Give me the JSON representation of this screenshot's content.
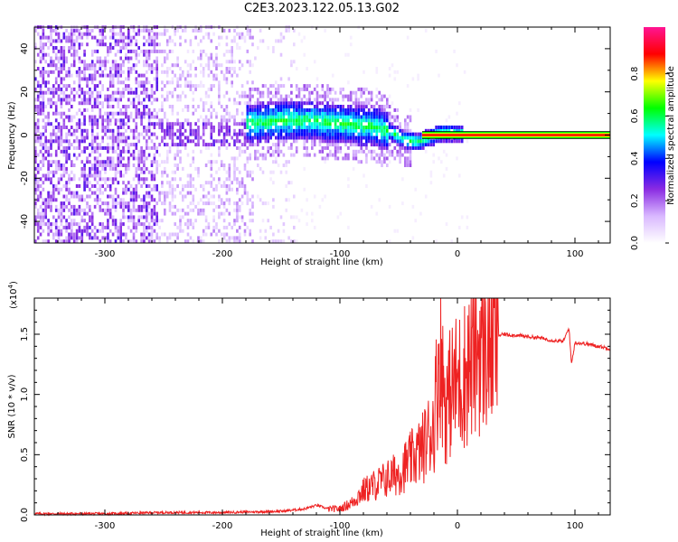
{
  "title": "C2E3.2023.122.05.13.G02",
  "chart_data": [
    {
      "type": "heatmap",
      "id": "spectrogram",
      "xlabel": "Height of straight line (km)",
      "ylabel": "Frequency (Hz)",
      "xlim": [
        -360,
        130
      ],
      "ylim": [
        -50,
        50
      ],
      "x_ticks": [
        -300,
        -200,
        -100,
        0,
        100
      ],
      "x_tick_labels": [
        "-300",
        "-200",
        "-100",
        "0",
        "100"
      ],
      "y_ticks": [
        -40,
        -20,
        0,
        20,
        40
      ],
      "y_tick_labels": [
        "-40",
        "-20",
        "0",
        "20",
        "40"
      ],
      "colorbar": {
        "label": "Normalized spectral amplitude",
        "range": [
          0,
          1
        ],
        "ticks": [
          0.0,
          0.2,
          0.4,
          0.6,
          0.8
        ],
        "tick_labels": [
          "0.0",
          "0.2",
          "0.4",
          "0.6",
          "0.8"
        ],
        "colors": [
          "#ffffff",
          "#d9b8ff",
          "#8a2be2",
          "#0000ff",
          "#00ffff",
          "#00ff00",
          "#ffff00",
          "#ff0000",
          "#ff1493"
        ]
      },
      "carrier_band": {
        "x_start": 5,
        "x_end": 130,
        "frequency": 0
      },
      "ridge": {
        "x": [
          -170,
          -150,
          -130,
          -110,
          -90,
          -70,
          -55,
          -45,
          -35,
          -25,
          -15,
          -5,
          5
        ],
        "frequency": [
          5,
          6,
          6,
          5,
          4,
          3,
          0,
          -3,
          -4,
          -2,
          0,
          0,
          0
        ]
      }
    },
    {
      "type": "line",
      "id": "snr",
      "xlabel": "Height of straight line (km)",
      "ylabel": "SNR (10 * v/v)",
      "multiplier_label": "(x10",
      "multiplier_exp": "4",
      "multiplier_close": ")",
      "xlim": [
        -360,
        130
      ],
      "ylim": [
        0,
        1.8
      ],
      "x_ticks": [
        -300,
        -200,
        -100,
        0,
        100
      ],
      "x_tick_labels": [
        "-300",
        "-200",
        "-100",
        "0",
        "100"
      ],
      "y_ticks": [
        0.0,
        0.5,
        1.0,
        1.5
      ],
      "y_tick_labels": [
        "0.0",
        "0.5",
        "1.0",
        "1.5"
      ],
      "color": "#ee2222",
      "series": [
        {
          "x": [
            -360,
            -300,
            -250,
            -200,
            -150,
            -130,
            -120,
            -110,
            -100,
            -90,
            -80,
            -70,
            -60,
            -50,
            -40,
            -30,
            -20,
            -15,
            -10,
            -5,
            0,
            5,
            10,
            15,
            20,
            30,
            40,
            50,
            60,
            70,
            80,
            90,
            95,
            97,
            100,
            110,
            120,
            130
          ],
          "values": [
            0.01,
            0.01,
            0.02,
            0.02,
            0.03,
            0.05,
            0.08,
            0.05,
            0.05,
            0.1,
            0.2,
            0.25,
            0.3,
            0.35,
            0.45,
            0.55,
            0.75,
            1.4,
            0.9,
            1.05,
            1.1,
            1.15,
            1.25,
            1.35,
            1.43,
            1.48,
            1.5,
            1.49,
            1.48,
            1.47,
            1.45,
            1.44,
            1.55,
            1.25,
            1.43,
            1.42,
            1.4,
            1.38
          ]
        }
      ]
    }
  ]
}
